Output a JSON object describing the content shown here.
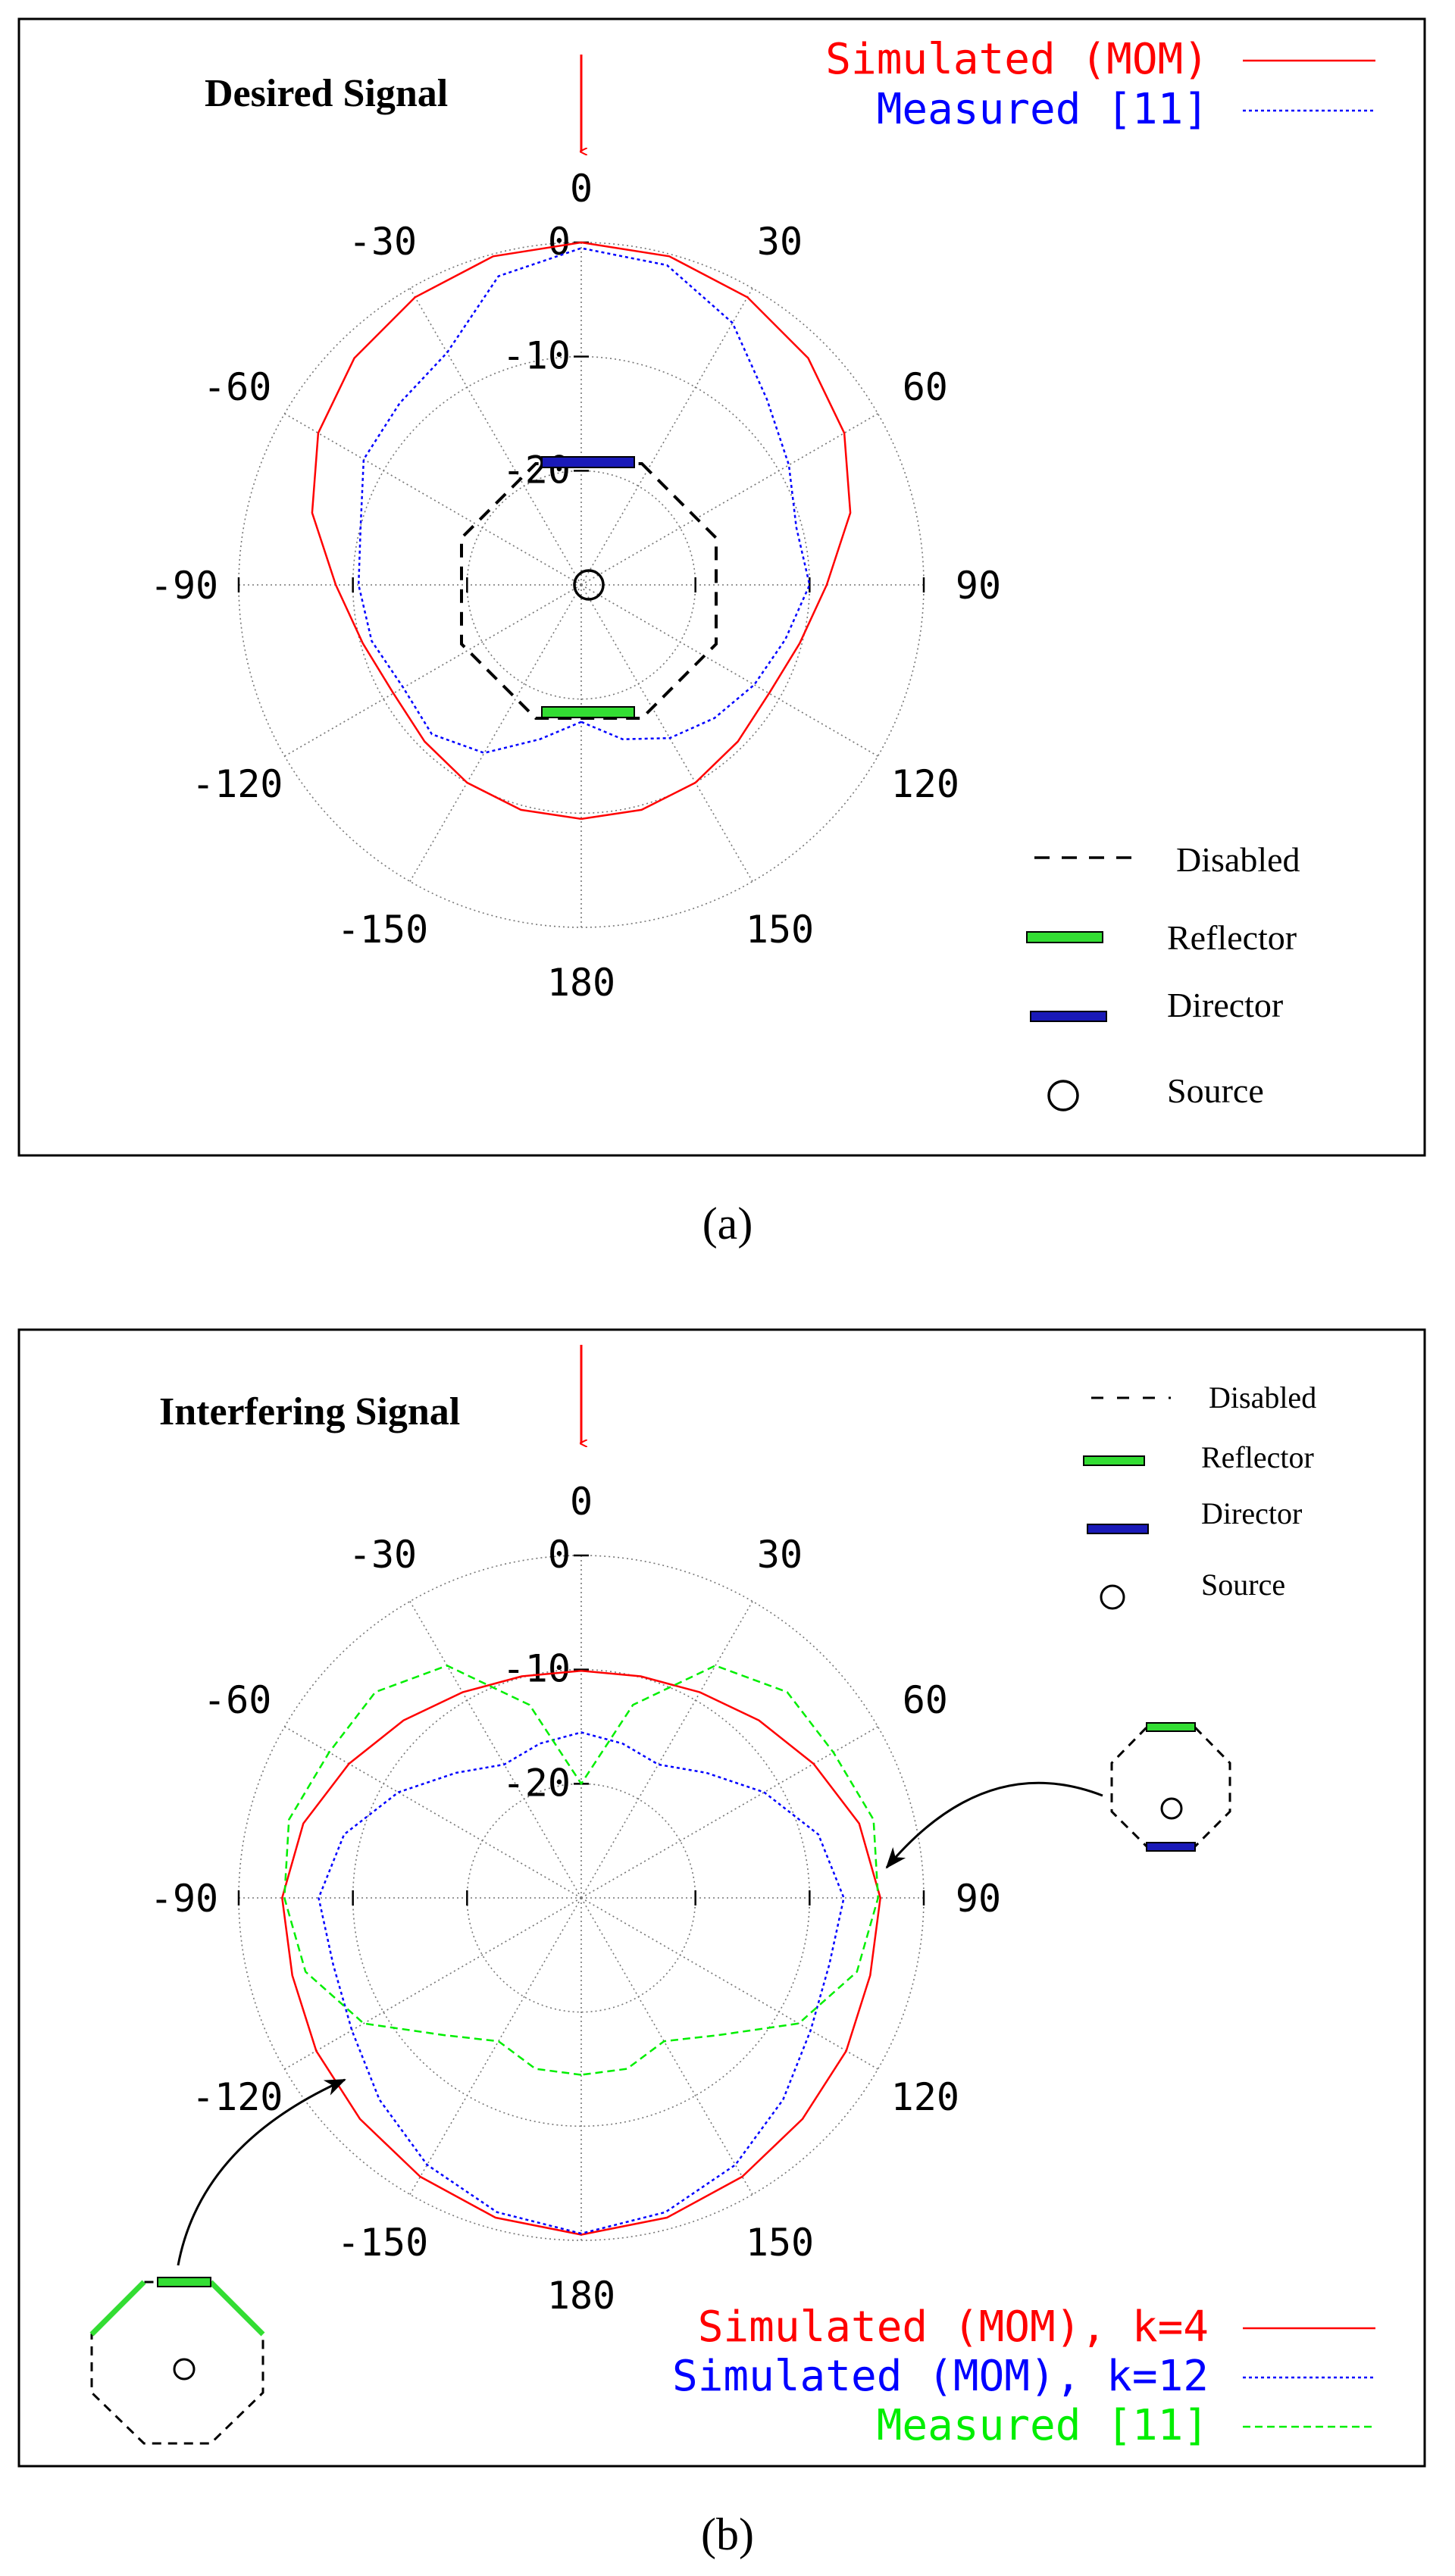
{
  "figure_label_a": "(a)",
  "figure_label_b": "(b)",
  "colors": {
    "simulated": "#ff0000",
    "measured_a": "#0000ff",
    "sim_k12": "#0000ff",
    "measured_b": "#00ee00",
    "reflector": "#33dd33",
    "director": "#1a1ab8",
    "arrow": "#ff0000",
    "grid": "#777777"
  },
  "chart_data": [
    {
      "id": "a",
      "type": "polar-line",
      "title": "Desired Signal",
      "angle_ticks": [
        0,
        30,
        60,
        90,
        120,
        150,
        180,
        -150,
        -120,
        -90,
        -60,
        -30
      ],
      "angle_tick_labels": [
        "0",
        "30",
        "60",
        "90",
        "120",
        "150",
        "180",
        "-150",
        "-120",
        "-90",
        "-60",
        "-30"
      ],
      "radial_ticks": [
        0,
        -10,
        -20
      ],
      "radial_tick_labels": [
        "0",
        "-10",
        "-20"
      ],
      "rlim_db": [
        -30,
        0
      ],
      "legend_upper": [
        "Simulated (MOM)",
        "Measured [11]"
      ],
      "legend_lower": [
        "Disabled",
        "Reflector",
        "Director",
        "Source"
      ],
      "series": [
        {
          "name": "Simulated (MOM)",
          "style": "solid",
          "angles_deg": [
            -180,
            -165,
            -150,
            -135,
            -120,
            -105,
            -90,
            -75,
            -60,
            -45,
            -30,
            -15,
            0,
            15,
            30,
            45,
            60,
            75,
            90,
            105,
            120,
            135,
            150,
            165,
            180
          ],
          "values_db": [
            -9.5,
            -9.6,
            -10.0,
            -10.6,
            -11.0,
            -10.2,
            -8.5,
            -5.6,
            -3.4,
            -1.9,
            -0.9,
            -0.2,
            0,
            -0.2,
            -0.9,
            -1.9,
            -3.4,
            -5.6,
            -8.5,
            -10.2,
            -11.0,
            -10.6,
            -10.0,
            -9.6,
            -9.5
          ]
        },
        {
          "name": "Measured [11]",
          "style": "dotted",
          "angles_deg": [
            -180,
            -165,
            -150,
            -135,
            -120,
            -105,
            -90,
            -75,
            -60,
            -45,
            -30,
            -15,
            0,
            15,
            30,
            45,
            60,
            75,
            90,
            105,
            120,
            135,
            150,
            165,
            180
          ],
          "values_db": [
            -18.0,
            -16.0,
            -13.0,
            -11.5,
            -12.0,
            -11.0,
            -10.5,
            -10.0,
            -8.0,
            -7.5,
            -6.5,
            -2.0,
            -0.5,
            -1.0,
            -3.5,
            -7.0,
            -9.0,
            -10.5,
            -10.0,
            -11.5,
            -12.5,
            -13.5,
            -14.5,
            -16.0,
            -18.0
          ]
        }
      ]
    },
    {
      "id": "b",
      "type": "polar-line",
      "title": "Interfering Signal",
      "angle_ticks": [
        0,
        30,
        60,
        90,
        120,
        150,
        180,
        -150,
        -120,
        -90,
        -60,
        -30
      ],
      "angle_tick_labels": [
        "0",
        "30",
        "60",
        "90",
        "120",
        "150",
        "180",
        "-150",
        "-120",
        "-90",
        "-60",
        "-30"
      ],
      "radial_ticks": [
        0,
        -10,
        -20
      ],
      "radial_tick_labels": [
        "0",
        "-10",
        "-20"
      ],
      "rlim_db": [
        -30,
        0
      ],
      "legend_upper": [
        "Disabled",
        "Reflector",
        "Director",
        "Source"
      ],
      "legend_lower": [
        "Simulated (MOM), k=4",
        "Simulated (MOM), k=12",
        "Measured [11]"
      ],
      "series": [
        {
          "name": "Simulated (MOM), k=4",
          "style": "solid",
          "angles_deg": [
            -180,
            -165,
            -150,
            -135,
            -120,
            -105,
            -90,
            -75,
            -60,
            -45,
            -30,
            -15,
            0,
            15,
            30,
            45,
            60,
            75,
            90,
            105,
            120,
            135,
            150,
            165,
            180
          ],
          "values_db": [
            -0.5,
            -1.0,
            -1.8,
            -2.6,
            -3.2,
            -3.8,
            -3.8,
            -4.8,
            -6.5,
            -8.0,
            -9.2,
            -9.9,
            -10.1,
            -9.9,
            -9.2,
            -8.0,
            -6.5,
            -4.8,
            -3.8,
            -3.8,
            -3.2,
            -2.6,
            -1.8,
            -1.0,
            -0.5
          ]
        },
        {
          "name": "Simulated (MOM), k=12",
          "style": "dotted",
          "angles_deg": [
            -180,
            -165,
            -150,
            -135,
            -120,
            -105,
            -90,
            -75,
            -60,
            -45,
            -30,
            -15,
            0,
            15,
            30,
            45,
            60,
            75,
            90,
            105,
            120,
            135,
            150,
            165,
            180
          ],
          "values_db": [
            -0.6,
            -1.5,
            -3.0,
            -5.0,
            -6.8,
            -7.5,
            -7.0,
            -8.5,
            -11.5,
            -14.5,
            -16.5,
            -16.0,
            -15.5,
            -16.0,
            -16.5,
            -14.5,
            -11.5,
            -8.5,
            -7.0,
            -7.5,
            -6.8,
            -5.0,
            -3.0,
            -1.5,
            -0.6
          ]
        },
        {
          "name": "Measured [11]",
          "style": "dashed",
          "angles_deg": [
            -180,
            -165,
            -150,
            -135,
            -120,
            -105,
            -90,
            -75,
            -60,
            -45,
            -30,
            -15,
            0,
            15,
            30,
            45,
            60,
            75,
            90,
            105,
            120,
            135,
            150,
            165,
            180
          ],
          "values_db": [
            -14.5,
            -14.5,
            -15.5,
            -13.0,
            -8.0,
            -5.0,
            -4.0,
            -3.5,
            -4.5,
            -4.5,
            -6.5,
            -12.5,
            -20.0,
            -12.5,
            -6.5,
            -4.5,
            -4.5,
            -3.5,
            -4.0,
            -5.0,
            -8.0,
            -13.0,
            -15.5,
            -14.5,
            -14.5
          ]
        }
      ]
    }
  ]
}
